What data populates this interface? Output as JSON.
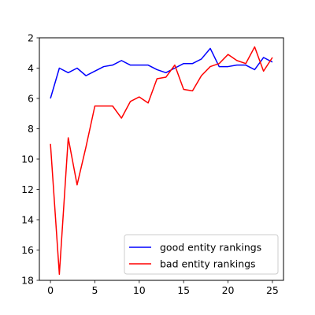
{
  "chart_data": {
    "type": "line",
    "title": "",
    "xlabel": "",
    "ylabel": "",
    "xlim": [
      -1.25,
      26.25
    ],
    "ylim": [
      2,
      18
    ],
    "y_inverted": true,
    "xticks": [
      0,
      5,
      10,
      15,
      20,
      25
    ],
    "yticks": [
      2,
      4,
      6,
      8,
      10,
      12,
      14,
      16,
      18
    ],
    "grid": false,
    "legend_position": "lower-right",
    "series": [
      {
        "name": "good entity rankings",
        "color": "#0000ff",
        "x": [
          0,
          1,
          2,
          3,
          4,
          5,
          6,
          7,
          8,
          9,
          10,
          11,
          12,
          13,
          14,
          15,
          16,
          17,
          18,
          19,
          20,
          21,
          22,
          23,
          24,
          25
        ],
        "y": [
          6.0,
          4.0,
          4.3,
          4.0,
          4.5,
          4.2,
          3.9,
          3.8,
          3.5,
          3.8,
          3.8,
          3.8,
          4.1,
          4.3,
          4.0,
          3.7,
          3.7,
          3.4,
          2.7,
          3.9,
          3.9,
          3.8,
          3.8,
          4.1,
          3.3,
          3.6
        ]
      },
      {
        "name": "bad entity rankings",
        "color": "#ff0000",
        "x": [
          0,
          1,
          2,
          3,
          4,
          5,
          6,
          7,
          8,
          9,
          10,
          11,
          12,
          13,
          14,
          15,
          16,
          17,
          18,
          19,
          20,
          21,
          22,
          23,
          24,
          25
        ],
        "y": [
          9.0,
          17.6,
          8.6,
          11.7,
          9.2,
          6.5,
          6.5,
          6.5,
          7.3,
          6.2,
          5.9,
          6.3,
          4.7,
          4.6,
          3.8,
          5.4,
          5.5,
          4.5,
          3.9,
          3.7,
          3.1,
          3.5,
          3.7,
          2.6,
          4.2,
          3.3
        ]
      }
    ]
  }
}
